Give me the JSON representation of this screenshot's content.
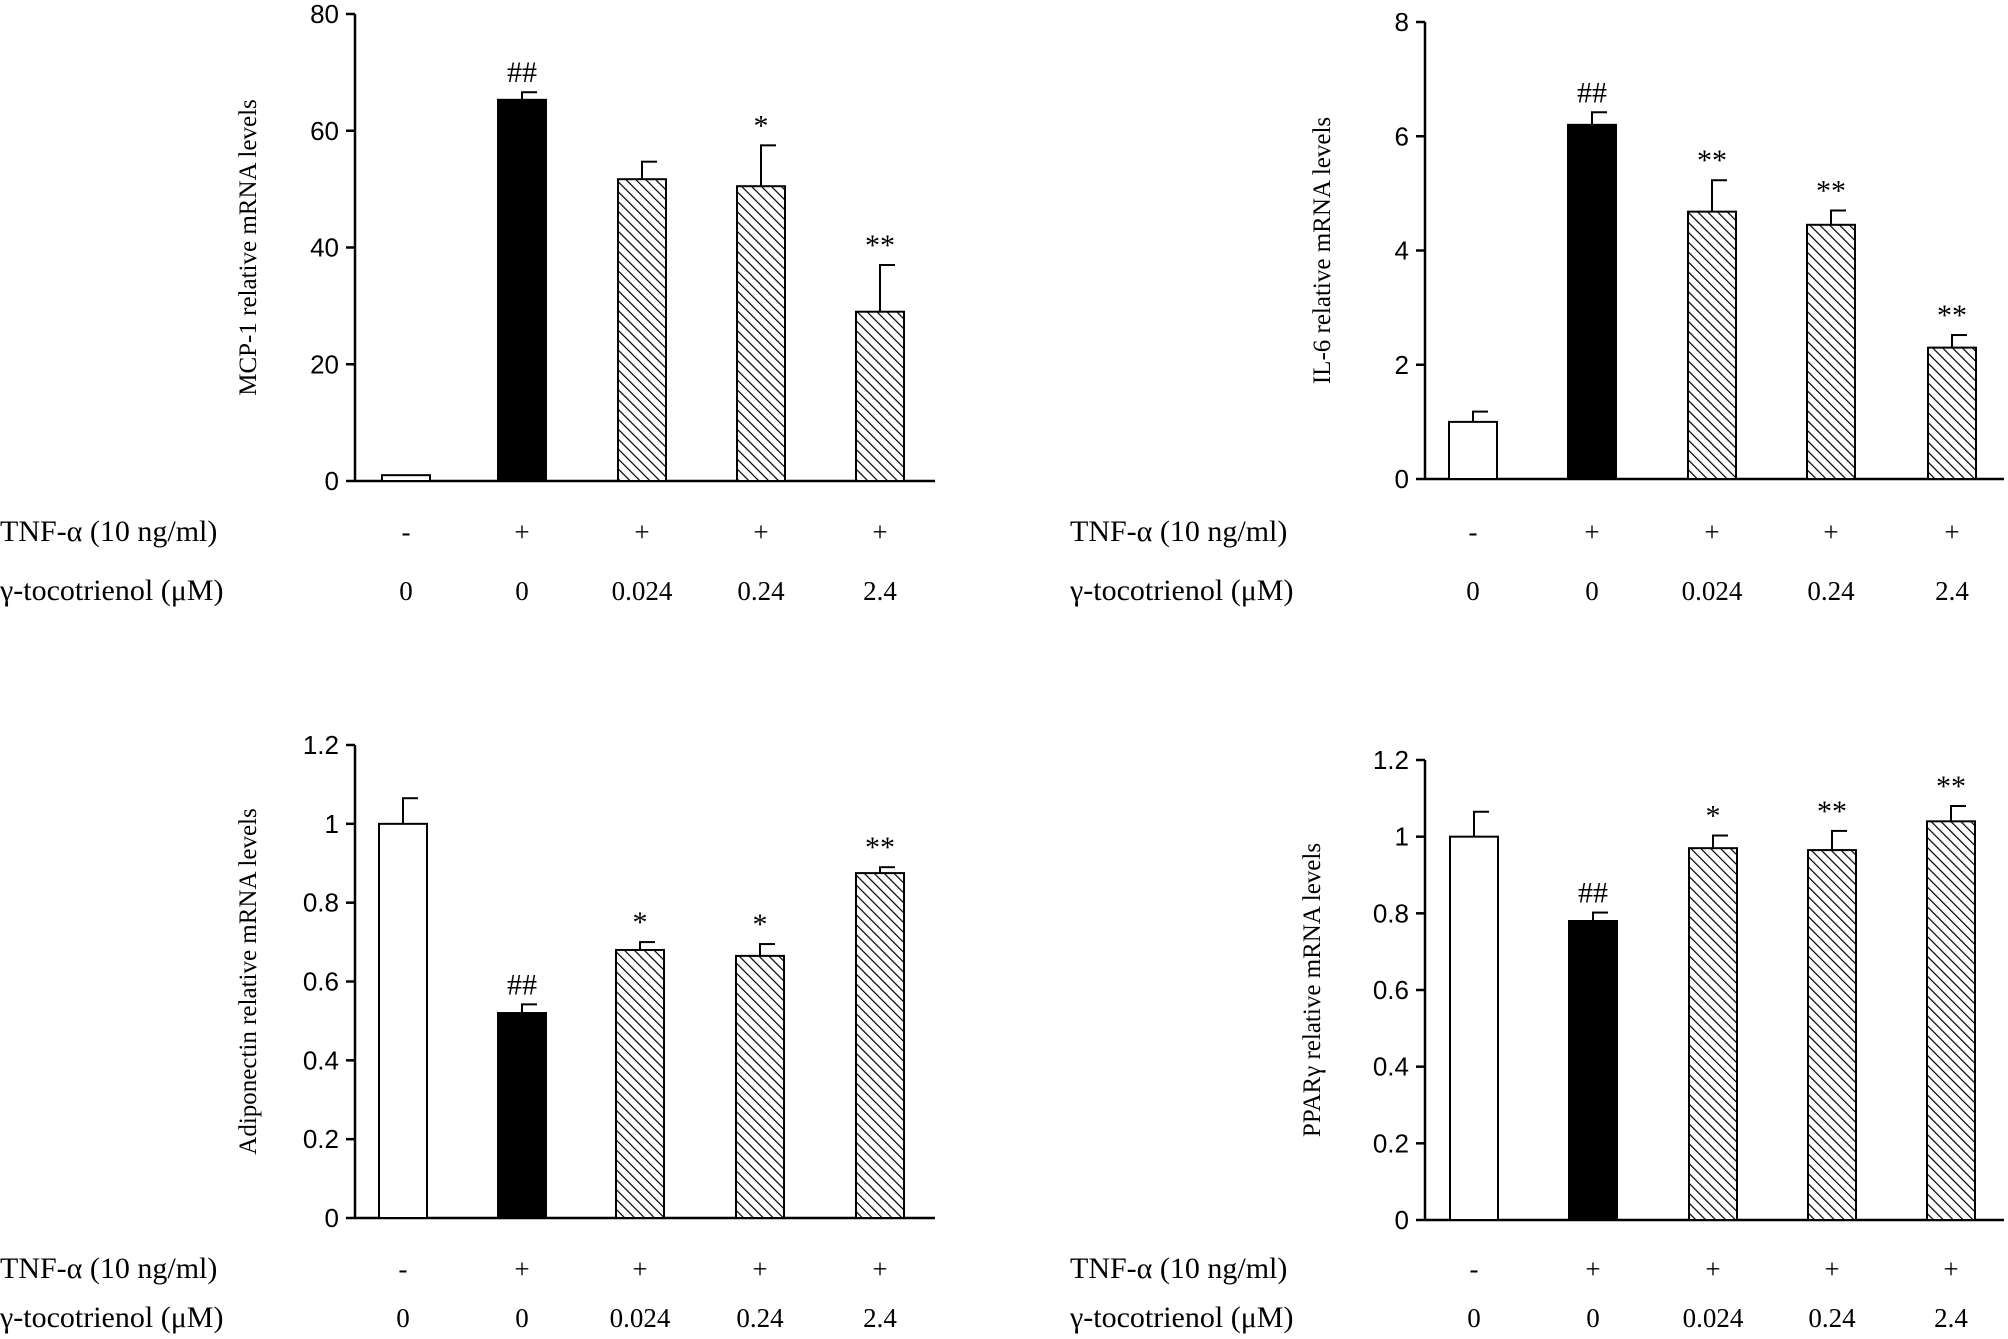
{
  "chart_data": [
    {
      "type": "bar",
      "ylabel": "MCP-1 relative mRNA levels",
      "ylim": [
        0,
        80
      ],
      "yticks": [
        "0",
        "20",
        "40",
        "60",
        "80"
      ],
      "values": [
        1,
        65.3,
        51.7,
        50.5,
        29
      ],
      "errors": [
        0,
        1.3,
        3,
        7,
        8
      ],
      "significance": [
        "",
        "##",
        "",
        "*",
        "**"
      ],
      "styles": [
        "white",
        "black",
        "hatched",
        "hatched",
        "hatched"
      ],
      "treatment_rows": [
        {
          "label": "TNF-α (10 ng/ml)",
          "values": [
            "-",
            "+",
            "+",
            "+",
            "+"
          ]
        },
        {
          "label": "γ-tocotrienol (μM)",
          "values": [
            "0",
            "0",
            "0.024",
            "0.24",
            "2.4"
          ]
        }
      ]
    },
    {
      "type": "bar",
      "ylabel": "IL-6 relative mRNA levels",
      "ylim": [
        0,
        8
      ],
      "yticks": [
        "0",
        "2",
        "4",
        "6",
        "8"
      ],
      "values": [
        1,
        6.2,
        4.68,
        4.45,
        2.3
      ],
      "errors": [
        0.18,
        0.22,
        0.55,
        0.25,
        0.22
      ],
      "significance": [
        "",
        "##",
        "**",
        "**",
        "**"
      ],
      "styles": [
        "white",
        "black",
        "hatched",
        "hatched",
        "hatched"
      ],
      "treatment_rows": [
        {
          "label": "TNF-α (10 ng/ml)",
          "values": [
            "-",
            "+",
            "+",
            "+",
            "+"
          ]
        },
        {
          "label": "γ-tocotrienol (μM)",
          "values": [
            "0",
            "0",
            "0.024",
            "0.24",
            "2.4"
          ]
        }
      ]
    },
    {
      "type": "bar",
      "ylabel": "Adiponectin relative mRNA levels",
      "ylim": [
        0,
        1.2
      ],
      "yticks": [
        "0",
        "0.2",
        "0.4",
        "0.6",
        "0.8",
        "1",
        "1.2"
      ],
      "values": [
        1.0,
        0.52,
        0.68,
        0.665,
        0.875
      ],
      "errors": [
        0.065,
        0.022,
        0.02,
        0.03,
        0.015
      ],
      "significance": [
        "",
        "##",
        "*",
        "*",
        "**"
      ],
      "styles": [
        "white",
        "black",
        "hatched",
        "hatched",
        "hatched"
      ],
      "treatment_rows": [
        {
          "label": "TNF-α (10 ng/ml)",
          "values": [
            "-",
            "+",
            "+",
            "+",
            "+"
          ]
        },
        {
          "label": "γ-tocotrienol (μM)",
          "values": [
            "0",
            "0",
            "0.024",
            "0.24",
            "2.4"
          ]
        }
      ]
    },
    {
      "type": "bar",
      "ylabel": "PPARγ relative mRNA levels",
      "ylim": [
        0,
        1.2
      ],
      "yticks": [
        "0",
        "0.2",
        "0.4",
        "0.6",
        "0.8",
        "1",
        "1.2"
      ],
      "values": [
        1.0,
        0.78,
        0.97,
        0.965,
        1.04
      ],
      "errors": [
        0.065,
        0.022,
        0.033,
        0.05,
        0.04
      ],
      "significance": [
        "",
        "##",
        "*",
        "**",
        "**"
      ],
      "styles": [
        "white",
        "black",
        "hatched",
        "hatched",
        "hatched"
      ],
      "treatment_rows": [
        {
          "label": "TNF-α (10 ng/ml)",
          "values": [
            "-",
            "+",
            "+",
            "+",
            "+"
          ]
        },
        {
          "label": "γ-tocotrienol (μM)",
          "values": [
            "0",
            "0",
            "0.024",
            "0.24",
            "2.4"
          ]
        }
      ]
    }
  ]
}
